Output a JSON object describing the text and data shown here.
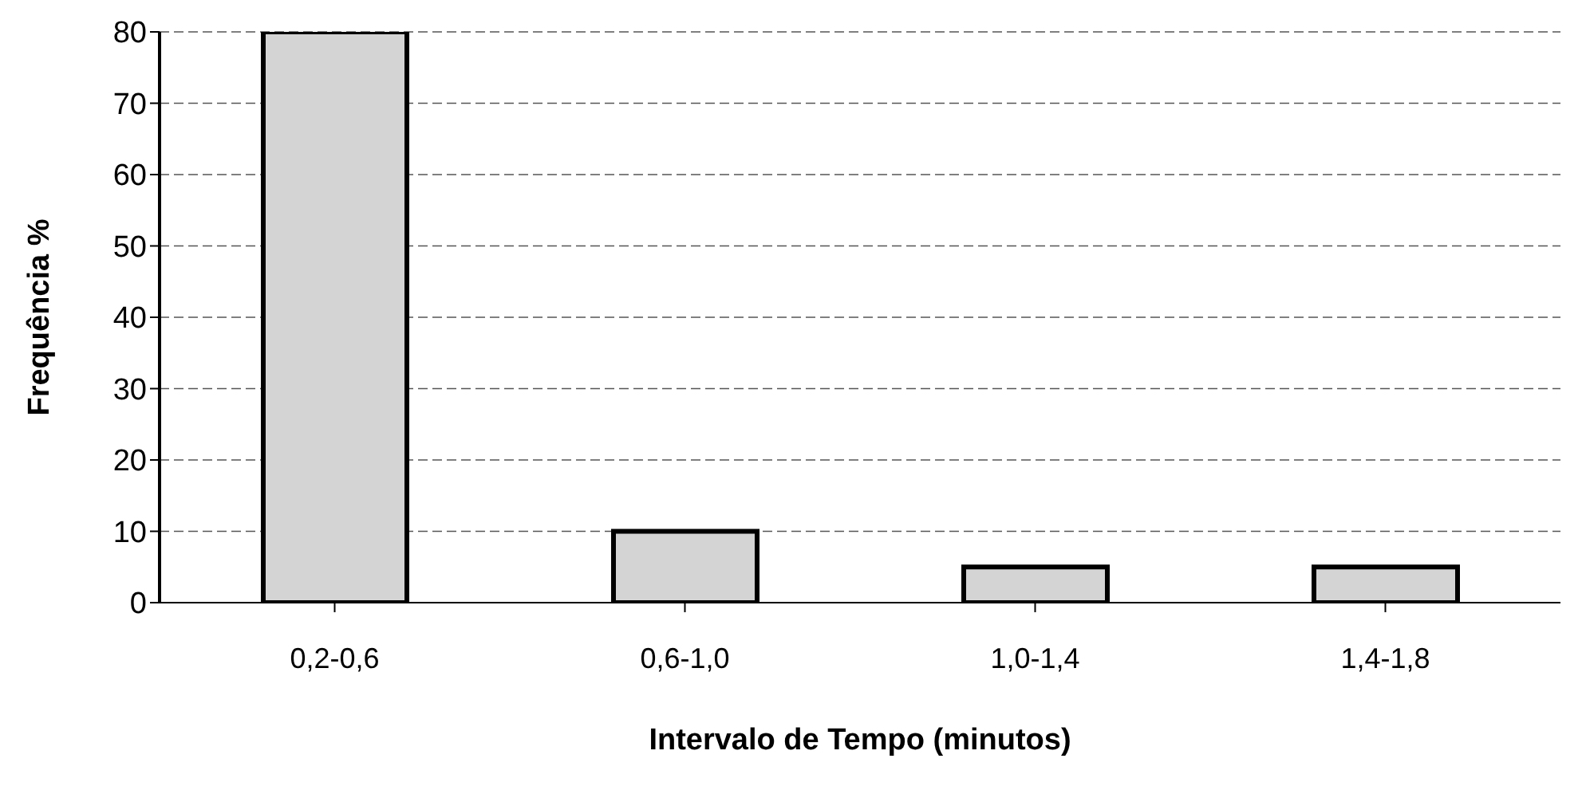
{
  "chart_data": {
    "type": "bar",
    "categories": [
      "0,2-0,6",
      "0,6-1,0",
      "1,0-1,4",
      "1,4-1,8"
    ],
    "values": [
      80,
      10,
      5,
      5
    ],
    "color": "#d4d4d4",
    "xlabel": "Intervalo de Tempo (minutos)",
    "ylabel": "Frequência %",
    "ylim": [
      0,
      80
    ],
    "yticks": [
      0,
      10,
      20,
      30,
      40,
      50,
      60,
      70,
      80
    ],
    "grid": "y"
  }
}
